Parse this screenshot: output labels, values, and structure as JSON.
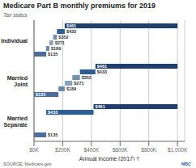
{
  "chart_data": {
    "type": "bar",
    "orientation": "horizontal",
    "title": "Medicare Part B monthly premiums for 2019",
    "subtitle": "Tax status",
    "xlabel": "Annual income (2017) †",
    "annotations": [
      {
        "text": "SOURCE: Medicare.gov"
      },
      {
        "text": "NBC",
        "color": "#2255aa"
      }
    ],
    "categories": [
      "Individual",
      "Married\nJoint",
      "Married\nSeparate"
    ],
    "series": [
      {
        "name": "$135",
        "color": "#4a6f9a",
        "values": [
          [
            0,
            85000
          ],
          [
            0,
            170000
          ],
          [
            0,
            85000
          ]
        ]
      },
      {
        "name": "$189",
        "color": "#6888aa",
        "values": [
          [
            85000,
            107000
          ],
          [
            170000,
            214000
          ],
          null
        ]
      },
      {
        "name": "$271",
        "color": "#8aa2bb",
        "values": [
          [
            107000,
            133500
          ],
          [
            214000,
            267000
          ],
          null
        ]
      },
      {
        "name": "$352",
        "color": "#7090b0",
        "values": [
          [
            133500,
            160000
          ],
          [
            267000,
            320000
          ],
          null
        ]
      },
      {
        "name": "$433",
        "color": "#2e5e8e",
        "values": [
          [
            160000,
            214000
          ],
          [
            320000,
            428000
          ],
          [
            85000,
            415000
          ]
        ]
      },
      {
        "name": "$461",
        "color": "#1e4070",
        "values": [
          [
            214000,
            1000000
          ],
          [
            428000,
            1000000
          ],
          [
            415000,
            1000000
          ]
        ]
      }
    ],
    "xlim": [
      0,
      1050000
    ],
    "xticks": [
      {
        "value": 0,
        "label": "$0K"
      },
      {
        "value": 200000,
        "label": "$200K"
      },
      {
        "value": 400000,
        "label": "$400K"
      },
      {
        "value": 600000,
        "label": "$600K"
      },
      {
        "value": 800000,
        "label": "$800K"
      },
      {
        "value": 1000000,
        "label": "$1,000K"
      }
    ],
    "grid": true
  }
}
